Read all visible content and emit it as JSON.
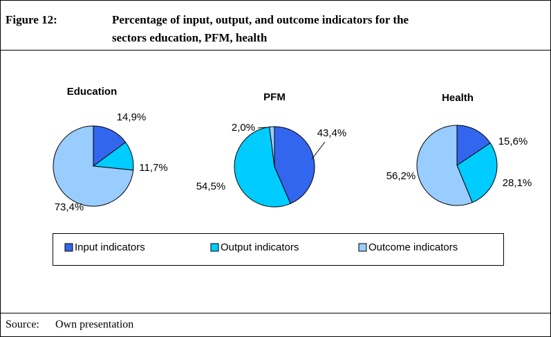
{
  "figure": {
    "label": "Figure 12:",
    "title_lines": [
      "Percentage of input, output, and outcome indicators for the",
      "sectors education, PFM, health"
    ]
  },
  "chart_data": [
    {
      "type": "pie",
      "title": "Education",
      "categories": [
        "Input indicators",
        "Output indicators",
        "Outcome indicators"
      ],
      "values": [
        14.9,
        11.7,
        73.4
      ],
      "value_labels": [
        "14,9%",
        "11,7%",
        "73,4%"
      ],
      "colors": [
        "#3366ee",
        "#00ccff",
        "#99ccff"
      ]
    },
    {
      "type": "pie",
      "title": "PFM",
      "categories": [
        "Input indicators",
        "Output indicators",
        "Outcome indicators"
      ],
      "values": [
        43.4,
        54.5,
        2.0
      ],
      "value_labels": [
        "43,4%",
        "54,5%",
        "2,0%"
      ],
      "colors": [
        "#3366ee",
        "#00ccff",
        "#99ccff"
      ]
    },
    {
      "type": "pie",
      "title": "Health",
      "categories": [
        "Input indicators",
        "Output indicators",
        "Outcome indicators"
      ],
      "values": [
        15.6,
        28.1,
        56.2
      ],
      "value_labels": [
        "15,6%",
        "28,1%",
        "56,2%"
      ],
      "colors": [
        "#3366ee",
        "#00ccff",
        "#99ccff"
      ]
    }
  ],
  "source": {
    "label": "Source:",
    "text": "Own presentation"
  }
}
